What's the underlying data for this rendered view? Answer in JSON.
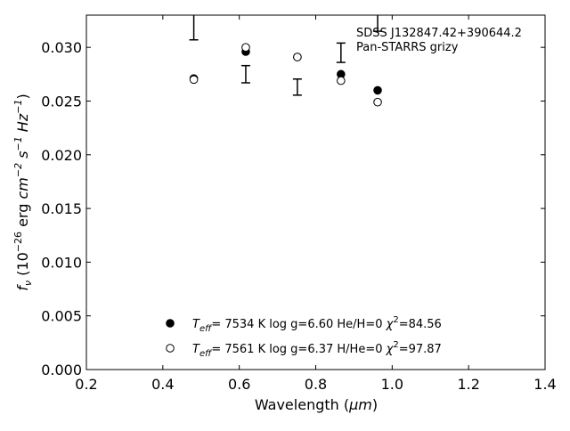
{
  "chart_data": {
    "type": "scatter",
    "xlabel_main": "Wavelength (",
    "xlabel_unit": "μm",
    "xlabel_close": ")",
    "ylabel": {
      "f": "f",
      "nu": "ν",
      "open": " (10",
      "exp_m26": "−26",
      "erg": " erg ",
      "cm": "cm",
      "exp_m2": "−2",
      "s": " s",
      "exp_m1a": "−1",
      "hz": " Hz",
      "exp_m1b": "−1",
      "close": ")"
    },
    "xlim": [
      0.2,
      1.4
    ],
    "ylim": [
      0.0,
      0.033
    ],
    "x_ticks": [
      "0.2",
      "0.4",
      "0.6",
      "0.8",
      "1.0",
      "1.2",
      "1.4"
    ],
    "x_tick_values": [
      0.2,
      0.4,
      0.6,
      0.8,
      1.0,
      1.2,
      1.4
    ],
    "y_ticks": [
      "0.000",
      "0.005",
      "0.010",
      "0.015",
      "0.020",
      "0.025",
      "0.030"
    ],
    "y_tick_values": [
      0.0,
      0.005,
      0.01,
      0.015,
      0.02,
      0.025,
      0.03
    ],
    "grid": false,
    "annotation": [
      "SDSS J132847.42+390644.2",
      "Pan-STARRS grizy"
    ],
    "observed": {
      "x": [
        0.481,
        0.617,
        0.752,
        0.866,
        0.962
      ],
      "y": [
        0.0325,
        0.0275,
        0.0263,
        0.0295,
        0.0335
      ],
      "yerr": [
        0.0018,
        0.0008,
        0.00075,
        0.0009,
        0.002
      ]
    },
    "series": [
      {
        "marker": "filled-circle",
        "x": [
          0.481,
          0.617,
          0.752,
          0.866,
          0.962
        ],
        "y": [
          0.0271,
          0.0296,
          0.0291,
          0.0275,
          0.026
        ],
        "legend": {
          "teff_label": "T",
          "teff_sub": "eff",
          "teff_eq": "=  7534 K  log g=6.60  He/H=0  ",
          "chi": "χ",
          "chi_sup": "2",
          "chi_val": "=84.56"
        }
      },
      {
        "marker": "open-circle",
        "x": [
          0.481,
          0.617,
          0.752,
          0.866,
          0.962
        ],
        "y": [
          0.027,
          0.03,
          0.0291,
          0.0269,
          0.0249
        ],
        "legend": {
          "teff_label": "T",
          "teff_sub": "eff",
          "teff_eq": "=  7561 K  log g=6.37  H/He=0  ",
          "chi": "χ",
          "chi_sup": "2",
          "chi_val": "=97.87"
        }
      }
    ]
  }
}
